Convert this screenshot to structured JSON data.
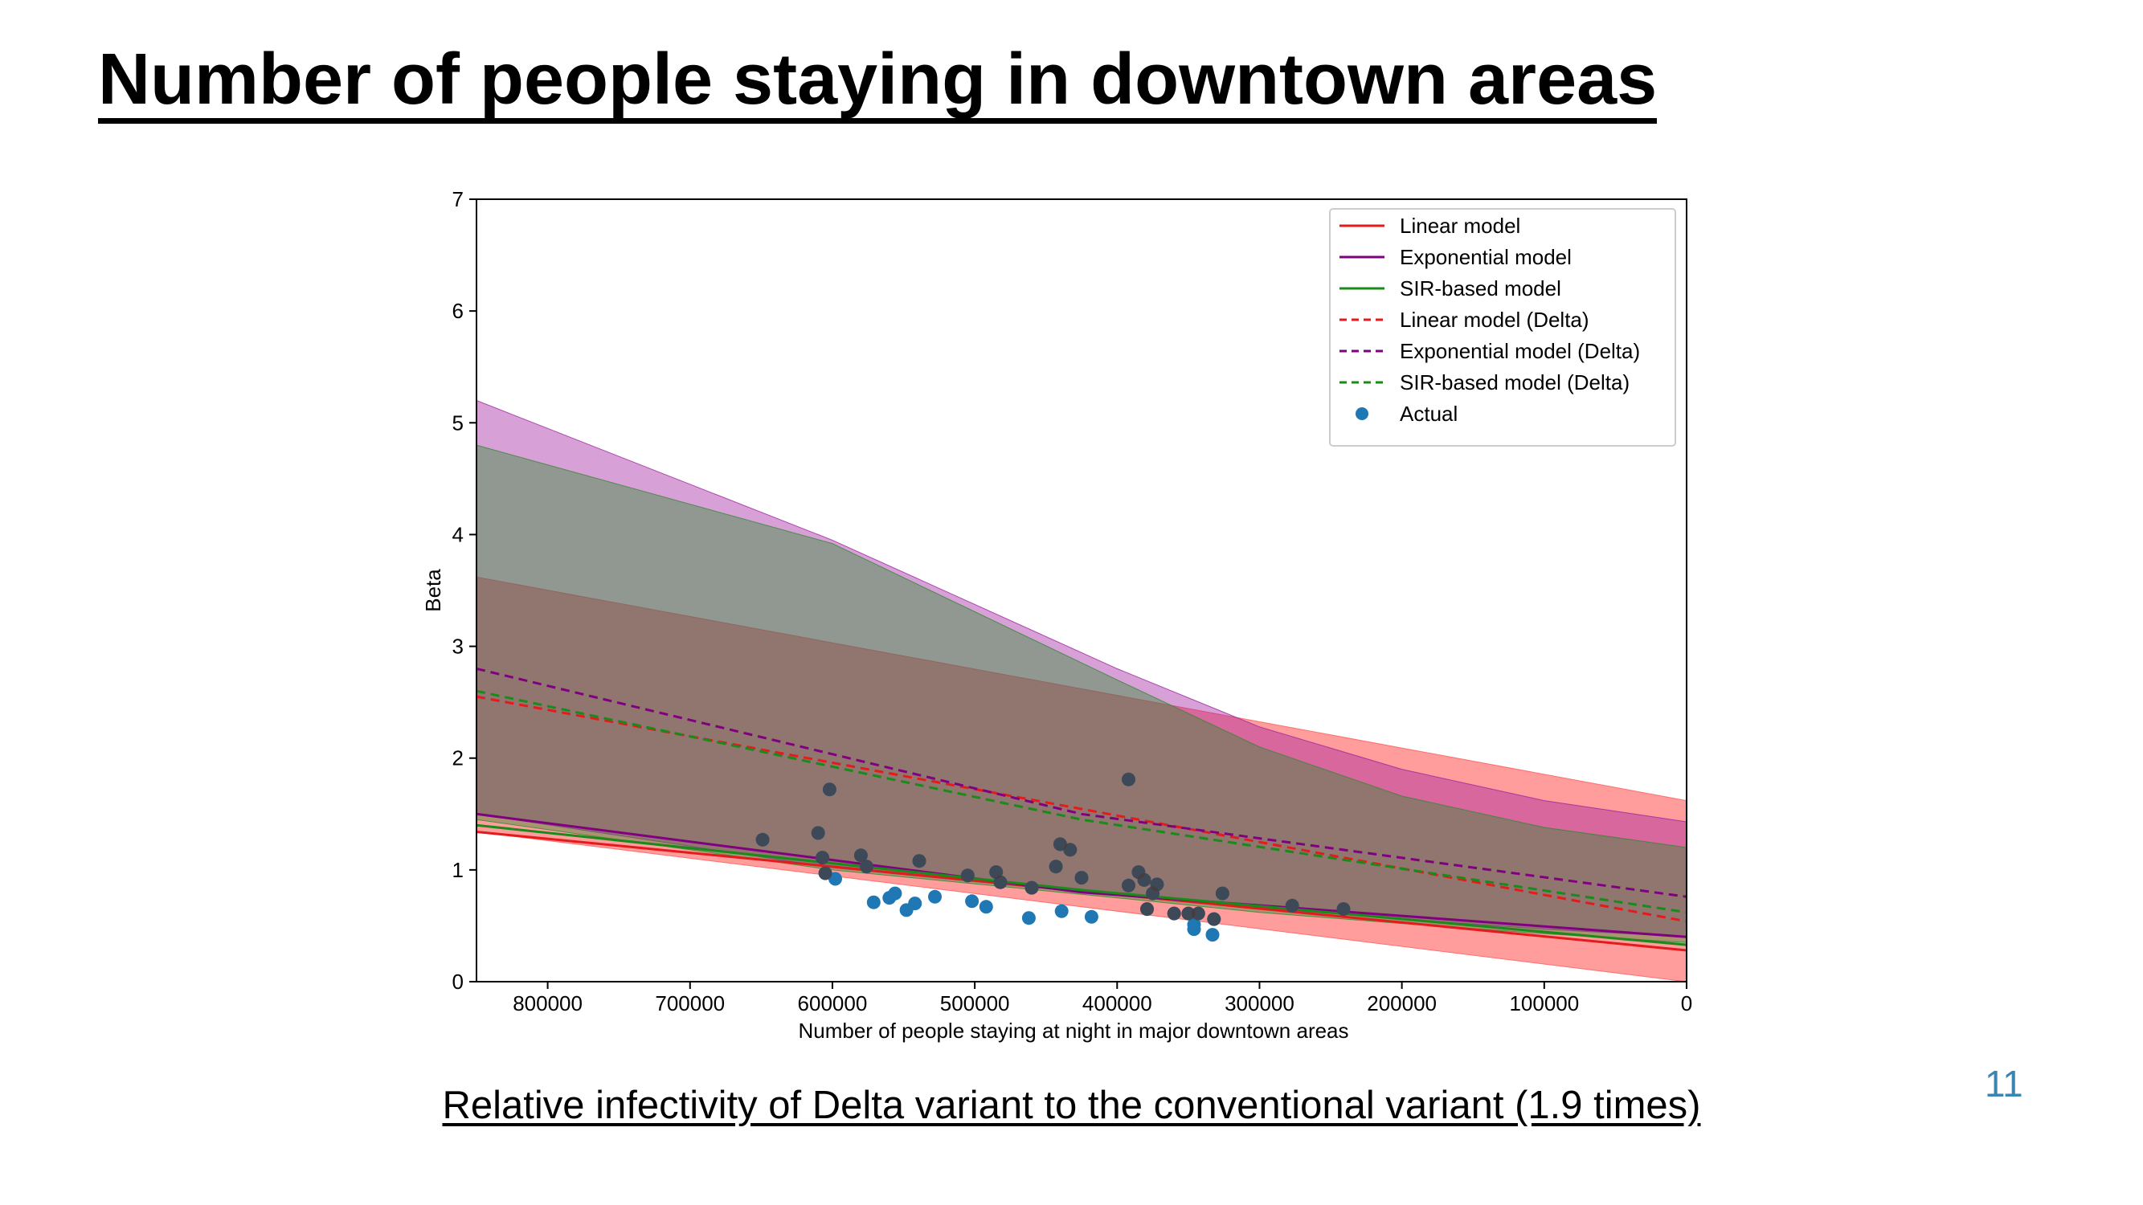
{
  "slide": {
    "title": "Number of people staying in downtown areas",
    "caption": "Relative infectivity of Delta variant to the conventional variant (1.9 times)",
    "page_number": "11"
  },
  "chart_data": {
    "type": "line",
    "xlabel": "Number of people staying at night in major downtown areas",
    "ylabel": "Beta",
    "xlim": [
      850000,
      0
    ],
    "ylim": [
      0,
      7
    ],
    "x_reversed": true,
    "x_ticks": [
      800000,
      700000,
      600000,
      500000,
      400000,
      300000,
      200000,
      100000,
      0
    ],
    "x_tick_labels": [
      "800000",
      "700000",
      "600000",
      "500000",
      "400000",
      "300000",
      "200000",
      "100000",
      "0"
    ],
    "y_ticks": [
      0,
      1,
      2,
      3,
      4,
      5,
      6,
      7
    ],
    "y_tick_labels": [
      "0",
      "1",
      "2",
      "3",
      "4",
      "5",
      "6",
      "7"
    ],
    "legend_position": "top-right",
    "series": [
      {
        "name": "Linear model",
        "color": "#e41a1c",
        "dash": false,
        "x": [
          850000,
          0
        ],
        "y": [
          1.34,
          0.28
        ]
      },
      {
        "name": "Exponential model",
        "color": "#800080",
        "dash": false,
        "x": [
          850000,
          425000,
          0
        ],
        "y": [
          1.5,
          0.8,
          0.4
        ]
      },
      {
        "name": "SIR-based model",
        "color": "#1a8a1a",
        "dash": false,
        "x": [
          850000,
          425000,
          0
        ],
        "y": [
          1.4,
          0.82,
          0.33
        ]
      },
      {
        "name": "Linear model (Delta)",
        "color": "#e41a1c",
        "dash": true,
        "x": [
          850000,
          0
        ],
        "y": [
          2.55,
          0.54
        ]
      },
      {
        "name": "Exponential model (Delta)",
        "color": "#800080",
        "dash": true,
        "x": [
          850000,
          425000,
          0
        ],
        "y": [
          2.8,
          1.5,
          0.76
        ]
      },
      {
        "name": "SIR-based model (Delta)",
        "color": "#1a8a1a",
        "dash": true,
        "x": [
          850000,
          425000,
          0
        ],
        "y": [
          2.6,
          1.45,
          0.62
        ]
      }
    ],
    "bands": [
      {
        "color": "#ff5a5a",
        "opacity": 0.6,
        "x": [
          850000,
          0
        ],
        "lower": [
          1.34,
          0.0
        ],
        "upper": [
          3.62,
          1.62
        ]
      },
      {
        "color": "#a020a0",
        "opacity": 0.42,
        "x": [
          850000,
          600000,
          400000,
          300000,
          200000,
          100000,
          0
        ],
        "lower": [
          1.5,
          1.02,
          0.77,
          0.66,
          0.56,
          0.47,
          0.4
        ],
        "upper": [
          5.2,
          3.95,
          2.8,
          2.28,
          1.9,
          1.62,
          1.43
        ]
      },
      {
        "color": "#2f8a2f",
        "opacity": 0.42,
        "x": [
          850000,
          600000,
          400000,
          300000,
          200000,
          100000,
          0
        ],
        "lower": [
          1.45,
          1.0,
          0.75,
          0.62,
          0.52,
          0.43,
          0.35
        ],
        "upper": [
          4.8,
          3.92,
          2.7,
          2.1,
          1.66,
          1.38,
          1.2
        ]
      }
    ],
    "actual": {
      "name": "Actual",
      "color": "#1f77b4",
      "points": [
        {
          "x": 649000,
          "y": 1.27
        },
        {
          "x": 610000,
          "y": 1.33
        },
        {
          "x": 602000,
          "y": 1.72
        },
        {
          "x": 607000,
          "y": 1.11
        },
        {
          "x": 605000,
          "y": 0.97
        },
        {
          "x": 598000,
          "y": 0.92
        },
        {
          "x": 580000,
          "y": 1.13
        },
        {
          "x": 576000,
          "y": 1.03
        },
        {
          "x": 571000,
          "y": 0.71
        },
        {
          "x": 560000,
          "y": 0.75
        },
        {
          "x": 556000,
          "y": 0.79
        },
        {
          "x": 548000,
          "y": 0.64
        },
        {
          "x": 542000,
          "y": 0.7
        },
        {
          "x": 539000,
          "y": 1.08
        },
        {
          "x": 528000,
          "y": 0.76
        },
        {
          "x": 505000,
          "y": 0.95
        },
        {
          "x": 502000,
          "y": 0.72
        },
        {
          "x": 492000,
          "y": 0.67
        },
        {
          "x": 485000,
          "y": 0.98
        },
        {
          "x": 482000,
          "y": 0.89
        },
        {
          "x": 462000,
          "y": 0.57
        },
        {
          "x": 460000,
          "y": 0.84
        },
        {
          "x": 443000,
          "y": 1.03
        },
        {
          "x": 440000,
          "y": 1.23
        },
        {
          "x": 439000,
          "y": 0.63
        },
        {
          "x": 433000,
          "y": 1.18
        },
        {
          "x": 425000,
          "y": 0.93
        },
        {
          "x": 418000,
          "y": 0.58
        },
        {
          "x": 392000,
          "y": 1.81
        },
        {
          "x": 392000,
          "y": 0.86
        },
        {
          "x": 385000,
          "y": 0.98
        },
        {
          "x": 381000,
          "y": 0.91
        },
        {
          "x": 379000,
          "y": 0.65
        },
        {
          "x": 375000,
          "y": 0.79
        },
        {
          "x": 372000,
          "y": 0.87
        },
        {
          "x": 360000,
          "y": 0.61
        },
        {
          "x": 350000,
          "y": 0.61
        },
        {
          "x": 346000,
          "y": 0.47
        },
        {
          "x": 346000,
          "y": 0.51
        },
        {
          "x": 343000,
          "y": 0.61
        },
        {
          "x": 333000,
          "y": 0.42
        },
        {
          "x": 332000,
          "y": 0.56
        },
        {
          "x": 326000,
          "y": 0.79
        },
        {
          "x": 277000,
          "y": 0.68
        },
        {
          "x": 241000,
          "y": 0.65
        }
      ]
    }
  }
}
